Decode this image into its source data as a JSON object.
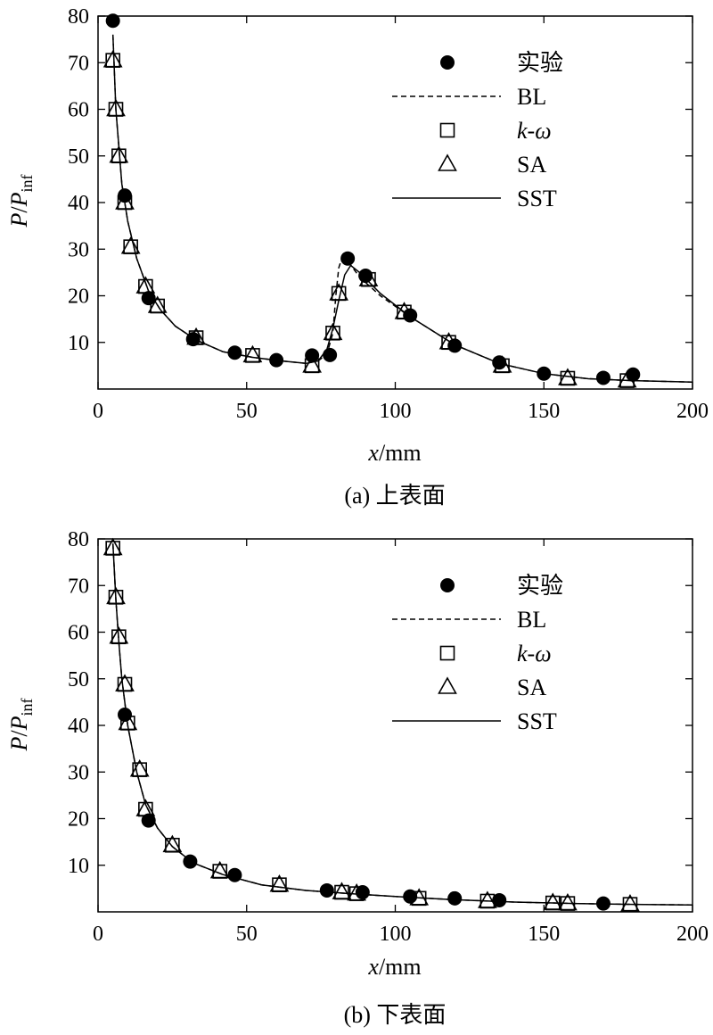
{
  "chart_data": [
    {
      "type": "scatter",
      "caption": "(a) 上表面",
      "xlabel_var": "x",
      "xlabel_unit": "/mm",
      "ylabel_p": "P",
      "ylabel_slash": "/",
      "ylabel_p2": "P",
      "ylabel_sub": "inf",
      "xlim": [
        0,
        200
      ],
      "ylim": [
        0,
        80
      ],
      "xticks": [
        0,
        50,
        100,
        150,
        200
      ],
      "yticks": [
        10,
        20,
        30,
        40,
        50,
        60,
        70,
        80
      ],
      "legend_position": "top-right",
      "grid": false,
      "series": [
        {
          "name": "实验",
          "marker": "filled-circle",
          "x": [
            5,
            9,
            17,
            32,
            46,
            60,
            72,
            78,
            84,
            90,
            105,
            120,
            135,
            150,
            170,
            180
          ],
          "y": [
            79,
            41.5,
            19.5,
            10.7,
            7.8,
            6.2,
            7.2,
            7.3,
            28,
            24.3,
            15.8,
            9.3,
            5.7,
            3.3,
            2.4,
            3.1
          ]
        },
        {
          "name": "BL",
          "line": "dashed",
          "x": [
            5,
            6,
            8,
            10,
            13,
            17,
            21,
            26,
            33,
            42,
            52,
            62,
            70,
            74,
            77,
            79,
            80,
            81,
            82,
            84,
            88,
            95,
            105,
            120,
            135,
            150,
            165,
            180,
            200
          ],
          "y": [
            76,
            60,
            44,
            36,
            28,
            21,
            17,
            13.5,
            10.5,
            8,
            6.8,
            6,
            5.5,
            6,
            7.5,
            12,
            20,
            26,
            28,
            27.5,
            24,
            20,
            15.5,
            9.5,
            5.5,
            3.3,
            2.2,
            1.8,
            1.5
          ]
        },
        {
          "name": "k-ω",
          "marker": "open-square",
          "x": [
            5,
            6,
            7,
            9,
            11,
            16,
            20,
            33,
            52,
            72,
            79,
            81,
            91,
            103,
            118,
            136,
            158,
            178
          ],
          "y": [
            70.5,
            60,
            50,
            40,
            30.5,
            22,
            17.8,
            11,
            7.2,
            5,
            12,
            20.5,
            23.5,
            16.5,
            10,
            5,
            2.3,
            1.8
          ]
        },
        {
          "name": "SA",
          "marker": "open-triangle",
          "x": [
            5,
            6,
            7,
            9,
            11,
            16,
            20,
            33,
            52,
            72,
            79,
            81,
            91,
            103,
            118,
            136,
            158,
            178
          ],
          "y": [
            70.5,
            60,
            50,
            40,
            30.5,
            22,
            17.8,
            11,
            7.2,
            5,
            12,
            20.5,
            23.5,
            16.5,
            10,
            5,
            2.3,
            1.8
          ]
        },
        {
          "name": "SST",
          "line": "solid",
          "x": [
            5,
            6,
            8,
            10,
            13,
            17,
            21,
            26,
            33,
            42,
            52,
            62,
            70,
            74,
            77,
            79,
            81,
            83,
            85,
            88,
            95,
            105,
            120,
            135,
            150,
            165,
            180,
            200
          ],
          "y": [
            76,
            60,
            44,
            36,
            28,
            21,
            17,
            13.5,
            10.5,
            8,
            6.8,
            6,
            5.5,
            6,
            8.5,
            13,
            19,
            24.5,
            26.5,
            25,
            20.5,
            15.5,
            9.5,
            5.5,
            3.3,
            2.2,
            1.8,
            1.5
          ]
        }
      ]
    },
    {
      "type": "scatter",
      "caption": "(b) 下表面",
      "xlabel_var": "x",
      "xlabel_unit": "/mm",
      "ylabel_p": "P",
      "ylabel_slash": "/",
      "ylabel_p2": "P",
      "ylabel_sub": "inf",
      "xlim": [
        0,
        200
      ],
      "ylim": [
        0,
        80
      ],
      "xticks": [
        0,
        50,
        100,
        150,
        200
      ],
      "yticks": [
        10,
        20,
        30,
        40,
        50,
        60,
        70,
        80
      ],
      "legend_position": "top-right",
      "grid": false,
      "series": [
        {
          "name": "实验",
          "marker": "filled-circle",
          "x": [
            9,
            17,
            31,
            46,
            77,
            89,
            105,
            120,
            135,
            170
          ],
          "y": [
            42.3,
            19.6,
            10.8,
            7.9,
            4.6,
            4.2,
            3.3,
            2.9,
            2.5,
            1.8
          ]
        },
        {
          "name": "BL",
          "line": "dashed",
          "x": [
            5,
            6,
            7,
            8,
            10,
            13,
            16,
            20,
            25,
            32,
            42,
            55,
            70,
            85,
            100,
            120,
            140,
            160,
            180,
            200
          ],
          "y": [
            79,
            67,
            58,
            50,
            40,
            30,
            23,
            18,
            14,
            10.5,
            8,
            5.8,
            4.6,
            3.9,
            3.3,
            2.6,
            2.1,
            1.8,
            1.6,
            1.5
          ]
        },
        {
          "name": "k-ω",
          "marker": "open-square",
          "x": [
            5,
            6,
            7,
            9,
            10,
            14,
            16,
            25,
            41,
            61,
            82,
            87,
            108,
            131,
            153,
            158,
            179
          ],
          "y": [
            78,
            67.5,
            59,
            48.8,
            40.5,
            30.5,
            22,
            14.3,
            8.7,
            5.8,
            4.2,
            3.9,
            2.9,
            2.3,
            1.9,
            1.8,
            1.6
          ]
        },
        {
          "name": "SA",
          "marker": "open-triangle",
          "x": [
            5,
            6,
            7,
            9,
            10,
            14,
            16,
            25,
            41,
            61,
            82,
            87,
            108,
            131,
            153,
            158,
            179
          ],
          "y": [
            78,
            67.5,
            59,
            48.8,
            40.5,
            30.5,
            22,
            14.3,
            8.7,
            5.8,
            4.2,
            3.9,
            2.9,
            2.3,
            1.9,
            1.8,
            1.6
          ]
        },
        {
          "name": "SST",
          "line": "solid",
          "x": [
            5,
            6,
            7,
            8,
            10,
            13,
            16,
            20,
            25,
            32,
            42,
            55,
            70,
            85,
            100,
            120,
            140,
            160,
            180,
            200
          ],
          "y": [
            79,
            67,
            58,
            50,
            40,
            30,
            23,
            18,
            14,
            10.5,
            8,
            5.8,
            4.6,
            3.9,
            3.3,
            2.6,
            2.1,
            1.8,
            1.6,
            1.5
          ]
        }
      ]
    }
  ]
}
